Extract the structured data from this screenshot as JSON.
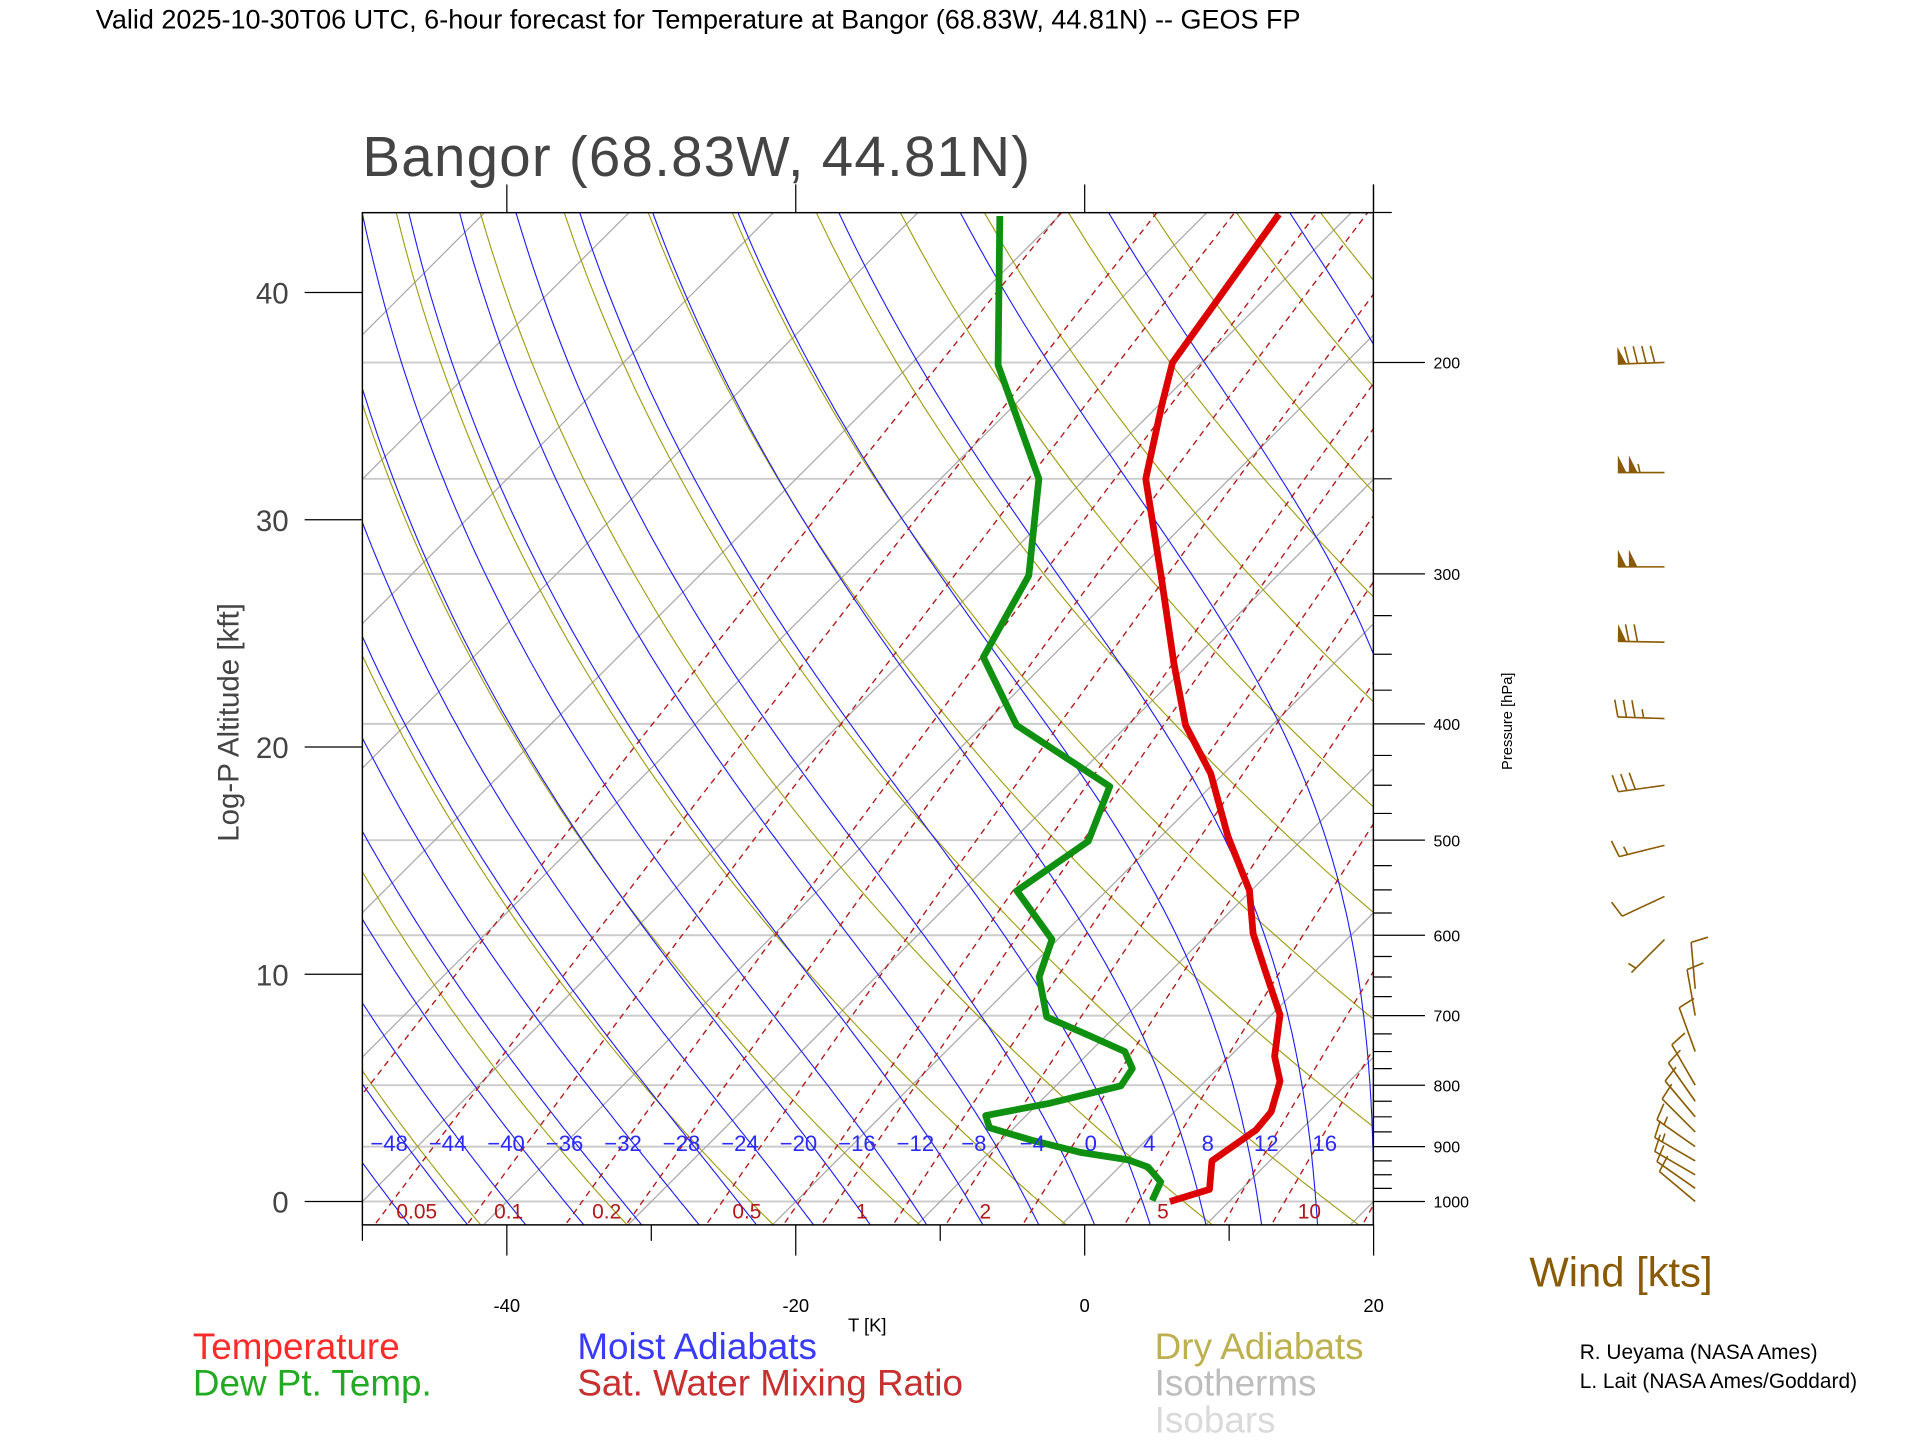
{
  "header": {
    "title": "Valid 2025-10-30T06 UTC, 6-hour forecast for Temperature at Bangor (68.83W, 44.81N) -- GEOS FP"
  },
  "chart_data": {
    "type": "line",
    "subtype": "skew-T log-P diagram",
    "title": "Bangor (68.83W, 44.81N)",
    "xlabel": "T [K]",
    "ylabel": "Log-P Altitude [kft]",
    "y2label": "Pressure [hPa]",
    "xlim": [
      -50,
      20
    ],
    "xticks": [
      -40,
      -20,
      0,
      20
    ],
    "plim_hpa": [
      1046,
      150
    ],
    "altitude_ticks_kft": [
      0,
      10,
      20,
      30,
      40
    ],
    "pressure_ticks": [
      1000,
      900,
      800,
      700,
      600,
      500,
      400,
      300,
      200
    ],
    "isotherm_labels": [
      -48,
      -44,
      -40,
      -36,
      -32,
      -28,
      -24,
      -20,
      -16,
      -12,
      -8,
      -4,
      0,
      4,
      8,
      12,
      16
    ],
    "mixing_ratio_labels": [
      "0.05",
      "0.1",
      "0.2",
      "0.5",
      "1",
      "2",
      "5",
      "10"
    ],
    "grid": true,
    "series": [
      {
        "name": "Temperature",
        "color": "#dd0000",
        "points": [
          {
            "p": 1000,
            "T": 5.9
          },
          {
            "p": 977,
            "T": 7.8
          },
          {
            "p": 925,
            "T": 6.0
          },
          {
            "p": 872,
            "T": 6.9
          },
          {
            "p": 842,
            "T": 6.7
          },
          {
            "p": 794,
            "T": 5.2
          },
          {
            "p": 757,
            "T": 3.1
          },
          {
            "p": 699,
            "T": 0.6
          },
          {
            "p": 642,
            "T": -3.5
          },
          {
            "p": 598,
            "T": -6.9
          },
          {
            "p": 551,
            "T": -10.1
          },
          {
            "p": 496,
            "T": -15.4
          },
          {
            "p": 440,
            "T": -20.9
          },
          {
            "p": 401,
            "T": -26.0
          },
          {
            "p": 356,
            "T": -31.1
          },
          {
            "p": 302,
            "T": -37.9
          },
          {
            "p": 250,
            "T": -45.8
          },
          {
            "p": 217,
            "T": -49.8
          },
          {
            "p": 200,
            "T": -52.0
          },
          {
            "p": 150.5,
            "T": -54.9
          }
        ]
      },
      {
        "name": "Dew Pt. Temp.",
        "color": "#109010",
        "points": [
          {
            "p": 998,
            "T": 4.6
          },
          {
            "p": 963,
            "T": 3.9
          },
          {
            "p": 936,
            "T": 2.0
          },
          {
            "p": 923,
            "T": 0.1
          },
          {
            "p": 910,
            "T": -3.7
          },
          {
            "p": 889,
            "T": -7.9
          },
          {
            "p": 868,
            "T": -11.7
          },
          {
            "p": 848,
            "T": -12.8
          },
          {
            "p": 828,
            "T": -9.2
          },
          {
            "p": 801,
            "T": -5.5
          },
          {
            "p": 775,
            "T": -5.9
          },
          {
            "p": 750,
            "T": -7.6
          },
          {
            "p": 726,
            "T": -11.4
          },
          {
            "p": 702,
            "T": -15.4
          },
          {
            "p": 650,
            "T": -18.7
          },
          {
            "p": 605,
            "T": -20.4
          },
          {
            "p": 551,
            "T": -26.2
          },
          {
            "p": 501,
            "T": -24.7
          },
          {
            "p": 451,
            "T": -27.0
          },
          {
            "p": 401,
            "T": -37.7
          },
          {
            "p": 352,
            "T": -44.7
          },
          {
            "p": 301,
            "T": -47.2
          },
          {
            "p": 250,
            "T": -53.2
          },
          {
            "p": 201,
            "T": -63.9
          },
          {
            "p": 151,
            "T": -74.1
          }
        ]
      }
    ],
    "wind": {
      "label": "Wind [kts]",
      "barbs": [
        {
          "p": 200,
          "speed": 90,
          "dir": 268
        },
        {
          "p": 247,
          "speed": 105,
          "dir": 270
        },
        {
          "p": 296,
          "speed": 100,
          "dir": 270
        },
        {
          "p": 342,
          "speed": 70,
          "dir": 271
        },
        {
          "p": 396,
          "speed": 35,
          "dir": 272
        },
        {
          "p": 450,
          "speed": 30,
          "dir": 262
        },
        {
          "p": 505,
          "speed": 15,
          "dir": 256
        },
        {
          "p": 557,
          "speed": 10,
          "dir": 245
        },
        {
          "p": 605,
          "speed": 5,
          "dir": 225
        },
        {
          "p": 665,
          "speed": 10,
          "dir": 355
        },
        {
          "p": 700,
          "speed": 10,
          "dir": 350
        },
        {
          "p": 750,
          "speed": 10,
          "dir": 340
        },
        {
          "p": 800,
          "speed": 10,
          "dir": 330
        },
        {
          "p": 825,
          "speed": 10,
          "dir": 325
        },
        {
          "p": 850,
          "speed": 10,
          "dir": 320
        },
        {
          "p": 875,
          "speed": 10,
          "dir": 315
        },
        {
          "p": 900,
          "speed": 15,
          "dir": 305
        },
        {
          "p": 925,
          "speed": 15,
          "dir": 300
        },
        {
          "p": 950,
          "speed": 10,
          "dir": 300
        },
        {
          "p": 975,
          "speed": 10,
          "dir": 305
        },
        {
          "p": 1000,
          "speed": 10,
          "dir": 310
        }
      ]
    }
  },
  "colors": {
    "isotherm": "#a8a8a8",
    "isobar": "#cccccc",
    "dry": "#a09a10",
    "moist": "#1a1aff",
    "mixing": "#b01818",
    "wind": "#8a5a00"
  },
  "legend": {
    "temperature": "Temperature",
    "dewpoint": "Dew Pt. Temp.",
    "moist": "Moist Adiabats",
    "mixing": "Sat. Water Mixing Ratio",
    "dry": "Dry Adiabats",
    "isotherms": "Isotherms",
    "isobars": "Isobars"
  },
  "credits": [
    "R. Ueyama (NASA Ames)",
    "L. Lait (NASA Ames/Goddard)"
  ]
}
